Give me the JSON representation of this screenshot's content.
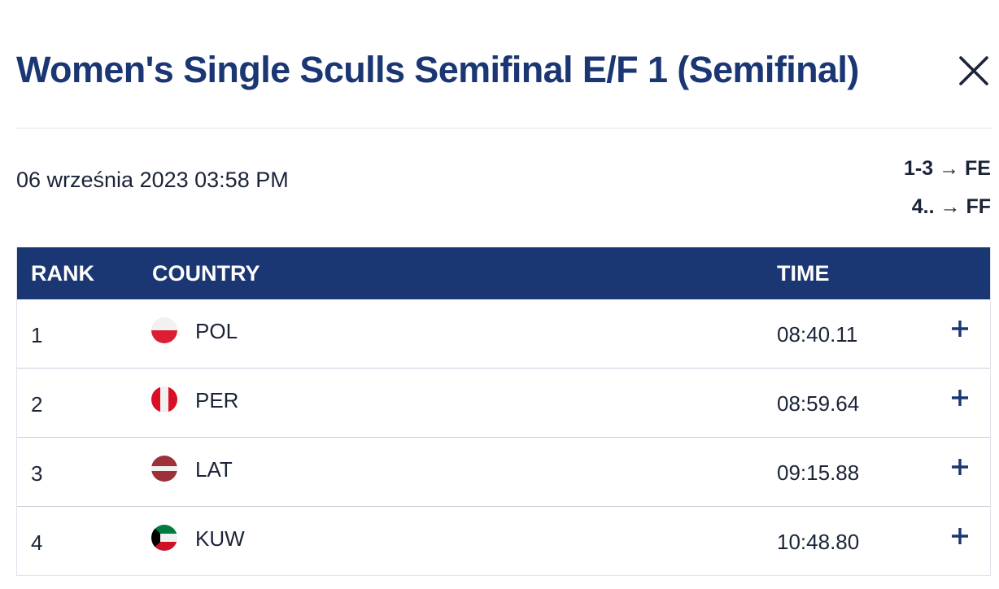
{
  "title": "Women's Single Sculls Semifinal E/F 1 (Semifinal)",
  "date": "06 września 2023 03:58 PM",
  "progression": [
    {
      "rule": "1-3 → FE"
    },
    {
      "rule": "4.. → FF"
    }
  ],
  "table": {
    "headers": {
      "rank": "RANK",
      "country": "COUNTRY",
      "time": "TIME"
    },
    "rows": [
      {
        "rank": "1",
        "country": "POL",
        "flag": "poland-flag-icon",
        "time": "08:40.11"
      },
      {
        "rank": "2",
        "country": "PER",
        "flag": "peru-flag-icon",
        "time": "08:59.64"
      },
      {
        "rank": "3",
        "country": "LAT",
        "flag": "latvia-flag-icon",
        "time": "09:15.88"
      },
      {
        "rank": "4",
        "country": "KUW",
        "flag": "kuwait-flag-icon",
        "time": "10:48.80"
      }
    ]
  },
  "colors": {
    "title": "#1a3673",
    "header_bg": "#1a3673",
    "text": "#1b2437"
  }
}
